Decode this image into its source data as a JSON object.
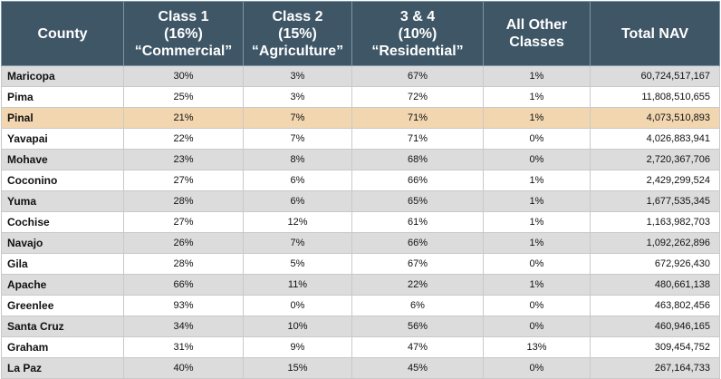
{
  "header": {
    "county": "County",
    "class1": [
      "Class 1",
      "(16%)",
      "“Commercial”"
    ],
    "class2": [
      "Class 2",
      "(15%)",
      "“Agriculture”"
    ],
    "class34": [
      "3 & 4",
      "(10%)",
      "“Residential”"
    ],
    "other": [
      "All Other",
      "Classes"
    ],
    "total": "Total NAV"
  },
  "rows": [
    {
      "county": "Maricopa",
      "c1": "30%",
      "c2": "3%",
      "c34": "67%",
      "other": "1%",
      "nav": "60,724,517,167"
    },
    {
      "county": "Pima",
      "c1": "25%",
      "c2": "3%",
      "c34": "72%",
      "other": "1%",
      "nav": "11,808,510,655"
    },
    {
      "county": "Pinal",
      "c1": "21%",
      "c2": "7%",
      "c34": "71%",
      "other": "1%",
      "nav": "4,073,510,893",
      "highlight": true
    },
    {
      "county": "Yavapai",
      "c1": "22%",
      "c2": "7%",
      "c34": "71%",
      "other": "0%",
      "nav": "4,026,883,941"
    },
    {
      "county": "Mohave",
      "c1": "23%",
      "c2": "8%",
      "c34": "68%",
      "other": "0%",
      "nav": "2,720,367,706"
    },
    {
      "county": "Coconino",
      "c1": "27%",
      "c2": "6%",
      "c34": "66%",
      "other": "1%",
      "nav": "2,429,299,524"
    },
    {
      "county": "Yuma",
      "c1": "28%",
      "c2": "6%",
      "c34": "65%",
      "other": "1%",
      "nav": "1,677,535,345"
    },
    {
      "county": "Cochise",
      "c1": "27%",
      "c2": "12%",
      "c34": "61%",
      "other": "1%",
      "nav": "1,163,982,703"
    },
    {
      "county": "Navajo",
      "c1": "26%",
      "c2": "7%",
      "c34": "66%",
      "other": "1%",
      "nav": "1,092,262,896"
    },
    {
      "county": "Gila",
      "c1": "28%",
      "c2": "5%",
      "c34": "67%",
      "other": "0%",
      "nav": "672,926,430"
    },
    {
      "county": "Apache",
      "c1": "66%",
      "c2": "11%",
      "c34": "22%",
      "other": "1%",
      "nav": "480,661,138"
    },
    {
      "county": "Greenlee",
      "c1": "93%",
      "c2": "0%",
      "c34": "6%",
      "other": "0%",
      "nav": "463,802,456"
    },
    {
      "county": "Santa Cruz",
      "c1": "34%",
      "c2": "10%",
      "c34": "56%",
      "other": "0%",
      "nav": "460,946,165"
    },
    {
      "county": "Graham",
      "c1": "31%",
      "c2": "9%",
      "c34": "47%",
      "other": "13%",
      "nav": "309,454,752"
    },
    {
      "county": "La Paz",
      "c1": "40%",
      "c2": "15%",
      "c34": "45%",
      "other": "0%",
      "nav": "267,164,733"
    }
  ],
  "colors": {
    "header_bg": "#3e5666",
    "stripe": "#dcdcdc",
    "highlight": "#f2d6b0"
  }
}
